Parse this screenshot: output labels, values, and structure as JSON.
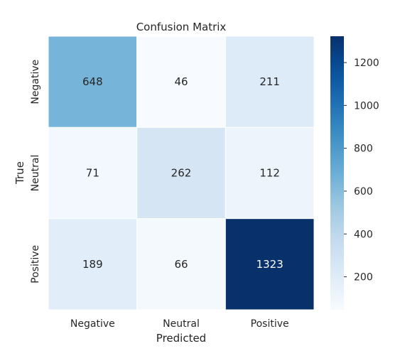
{
  "chart_data": {
    "type": "heatmap",
    "title": "Confusion Matrix",
    "xlabel": "Predicted",
    "ylabel": "True",
    "x_categories": [
      "Negative",
      "Neutral",
      "Positive"
    ],
    "y_categories": [
      "Negative",
      "Neutral",
      "Positive"
    ],
    "values": [
      [
        648,
        46,
        211
      ],
      [
        71,
        262,
        112
      ],
      [
        189,
        66,
        1323
      ]
    ],
    "colormap": "Blues",
    "colorbar": {
      "range": [
        46,
        1323
      ],
      "ticks": [
        200,
        400,
        600,
        800,
        1000,
        1200
      ]
    },
    "grid": false,
    "cell_borders_color": "#ffffff"
  }
}
